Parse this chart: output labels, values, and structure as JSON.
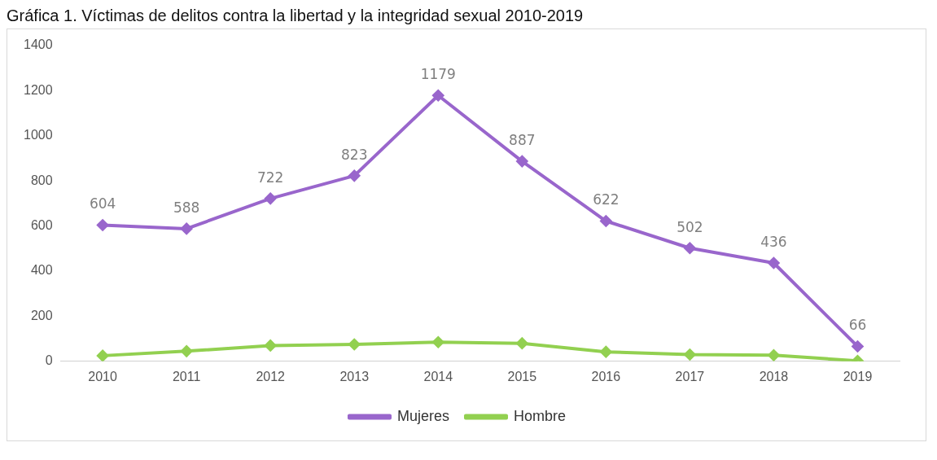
{
  "chart_data": {
    "type": "line",
    "title": "Gráfica 1. Víctimas de delitos contra la libertad y la integridad sexual 2010-2019",
    "categories": [
      "2010",
      "2011",
      "2012",
      "2013",
      "2014",
      "2015",
      "2016",
      "2017",
      "2018",
      "2019"
    ],
    "series": [
      {
        "name": "Mujeres",
        "color": "#9966cc",
        "values": [
          604,
          588,
          722,
          823,
          1179,
          887,
          622,
          502,
          436,
          66
        ],
        "value_labels": [
          "604",
          "588",
          "722",
          "823",
          "1179",
          "887",
          "622",
          "502",
          "436",
          "66"
        ]
      },
      {
        "name": "Hombre",
        "color": "#92d050",
        "values": [
          25,
          45,
          70,
          75,
          85,
          80,
          42,
          30,
          27,
          2
        ]
      }
    ],
    "ylim": [
      0,
      1400
    ],
    "yticks": [
      0,
      200,
      400,
      600,
      800,
      1000,
      1200,
      1400
    ],
    "grid": false,
    "legend": "bottom",
    "marker": "diamond",
    "line_style": "solid"
  }
}
